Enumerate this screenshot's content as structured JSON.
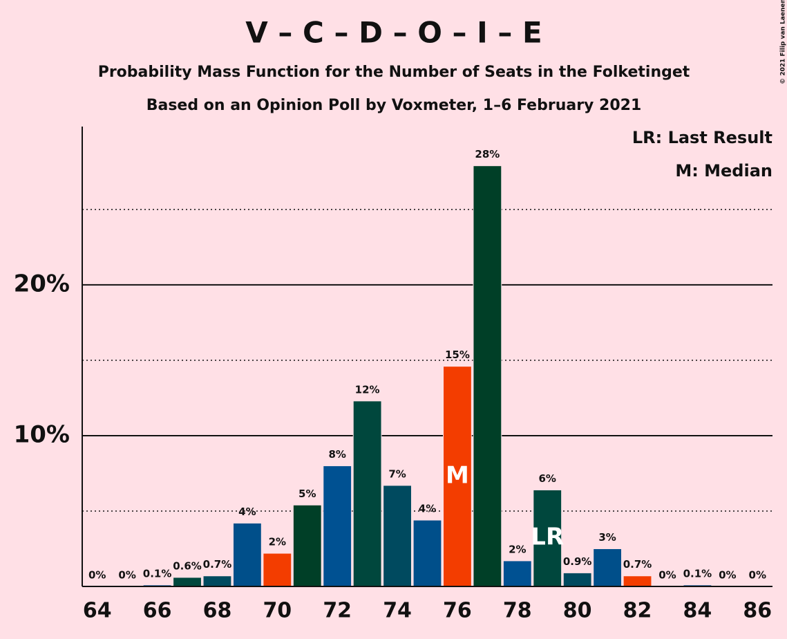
{
  "chart_data": {
    "type": "bar",
    "title": "V – C – D – O – I – E",
    "subtitle": "Probability Mass Function for the Number of Seats in the Folketinget",
    "subtitle2": "Based on an Opinion Poll by Voxmeter, 1–6 February 2021",
    "copyright": "© 2021 Filip van Laenen",
    "x": [
      64,
      65,
      66,
      67,
      68,
      69,
      70,
      71,
      72,
      73,
      74,
      75,
      76,
      77,
      78,
      79,
      80,
      81,
      82,
      83,
      84,
      85,
      86
    ],
    "values": [
      0,
      0,
      0.1,
      0.6,
      0.7,
      4.2,
      2.2,
      5.4,
      8.0,
      12.3,
      6.7,
      4.4,
      14.6,
      27.9,
      1.7,
      6.4,
      0.9,
      2.5,
      0.7,
      0,
      0.1,
      0,
      0
    ],
    "value_labels": [
      "0%",
      "0%",
      "0.1%",
      "0.6%",
      "0.7%",
      "4%",
      "2%",
      "5%",
      "8%",
      "12%",
      "7%",
      "4%",
      "15%",
      "28%",
      "2%",
      "6%",
      "0.9%",
      "3%",
      "0.7%",
      "0%",
      "0.1%",
      "0%",
      "0%"
    ],
    "colors": [
      "#f33d00",
      "#003f27",
      "#005192",
      "#00473d",
      "#004a5f",
      "#004f8a",
      "#f33d00",
      "#003f27",
      "#005192",
      "#00473d",
      "#004a5f",
      "#004f8a",
      "#f33d00",
      "#003f27",
      "#005192",
      "#00473d",
      "#004a5f",
      "#004f8a",
      "#f33d00",
      "#003f27",
      "#005192",
      "#00473d",
      "#004a5f"
    ],
    "xlim": [
      63.5,
      86.5
    ],
    "xticks": [
      64,
      66,
      68,
      70,
      72,
      74,
      76,
      78,
      80,
      82,
      84,
      86
    ],
    "ylim": [
      0,
      30.5
    ],
    "yticks": [
      {
        "value": 10,
        "label": "10%"
      },
      {
        "value": 20,
        "label": "20%"
      }
    ],
    "minor_yticks": [
      5,
      15,
      25
    ],
    "median": {
      "x": 76,
      "label": "M"
    },
    "last_result": {
      "x": 79,
      "label": "LR"
    },
    "legend": [
      "LR: Last Result",
      "M: Median"
    ]
  }
}
